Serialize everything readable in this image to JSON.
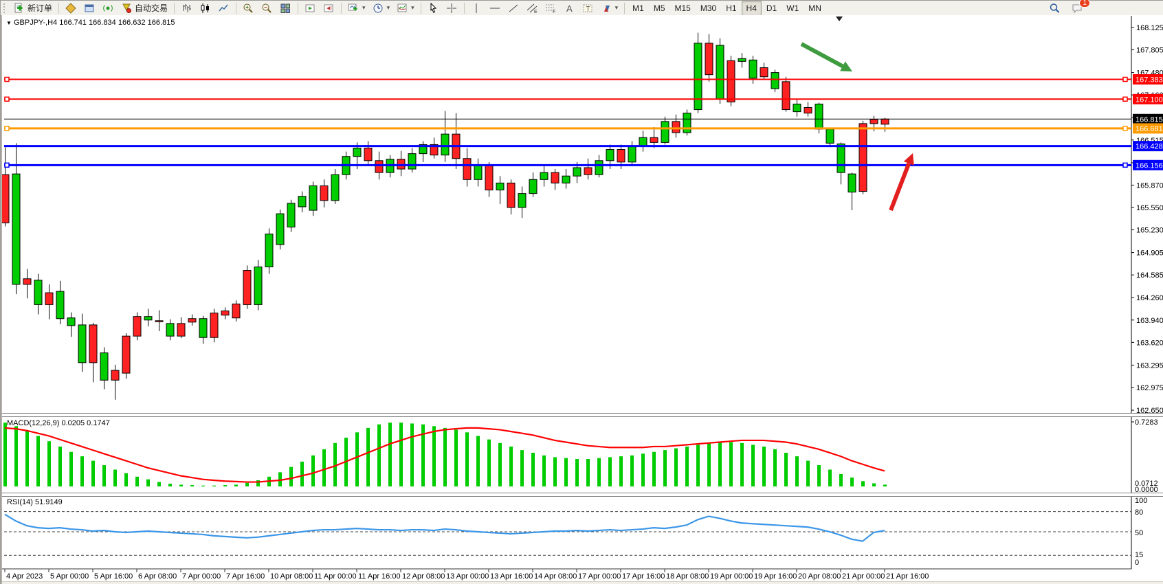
{
  "toolbar": {
    "new_order_label": "新订单",
    "auto_trading_label": "自动交易",
    "icons": {
      "new_order": "document-plus-icon",
      "symbols": "gold-diamond-icon",
      "terminal": "blue-window-icon",
      "signal": "signal-icon",
      "auto_trading": "funnel-red-dot-icon",
      "bar_chart": "bar-chart-icon",
      "candle_chart": "candlestick-icon",
      "line_chart": "line-chart-icon",
      "zoom_in": "zoom-in-icon",
      "zoom_out": "zoom-out-icon",
      "tile_windows": "tile-windows-icon",
      "auto_scroll": "auto-scroll-icon",
      "chart_shift": "chart-shift-icon",
      "new_chart": "new-chart-icon",
      "periods": "clock-icon",
      "indicators": "indicator-chart-icon",
      "cursor": "cursor-icon",
      "crosshair": "crosshair-icon",
      "vline": "vertical-line-icon",
      "hline": "horizontal-line-icon",
      "trendline": "trendline-icon",
      "channel": "equidistant-channel-icon",
      "fibonacci": "fibonacci-icon",
      "text": "text-a-icon",
      "text_label": "text-label-icon",
      "arrows": "arrow-objects-icon",
      "search": "search-icon",
      "chat": "chat-bubble-icon"
    },
    "timeframes": [
      "M1",
      "M5",
      "M15",
      "M30",
      "H1",
      "H4",
      "D1",
      "W1",
      "MN"
    ],
    "active_timeframe": "H4",
    "chat_badge": "1"
  },
  "chart": {
    "symbol": "GBPJPY-",
    "period": "H4",
    "open": "166.741",
    "high": "166.834",
    "low": "166.632",
    "close": "166.815",
    "title_line": "GBPJPY-,H4  166.741 166.834 166.632 166.815"
  },
  "price_axis": {
    "ticks": [
      "168.125",
      "167.805",
      "167.480",
      "167.160",
      "166.835",
      "166.515",
      "166.190",
      "165.870",
      "165.550",
      "165.230",
      "164.905",
      "164.585",
      "164.260",
      "163.940",
      "163.620",
      "163.295",
      "162.975",
      "162.650"
    ]
  },
  "hlines": [
    {
      "label": "167.383",
      "price": 167.383,
      "color": "#FF0000",
      "width": 2,
      "handle": true
    },
    {
      "label": "167.100",
      "price": 167.1,
      "color": "#FF0000",
      "width": 2,
      "handle": true
    },
    {
      "label": "166.681",
      "price": 166.681,
      "color": "#FF9B00",
      "width": 3,
      "handle": true
    },
    {
      "label": "166.428",
      "price": 166.428,
      "color": "#0000FF",
      "width": 3,
      "handle": false
    },
    {
      "label": "166.156",
      "price": 166.156,
      "color": "#0000FF",
      "width": 3,
      "handle": true
    }
  ],
  "current_price": {
    "label": "166.815",
    "price": 166.815,
    "color": "#000000"
  },
  "annotations": {
    "green_down_arrow": {
      "from": [
        1163,
        63
      ],
      "to": [
        1237,
        103
      ],
      "color": "#3E9B3E"
    },
    "red_up_arrow": {
      "from": [
        1293,
        305
      ],
      "to": [
        1325,
        222
      ],
      "color": "#E21F1F"
    }
  },
  "date_axis": {
    "labels": [
      "4 Apr 2023",
      "5 Apr 00:00",
      "5 Apr 16:00",
      "6 Apr 08:00",
      "7 Apr 00:00",
      "7 Apr 16:00",
      "10 Apr 08:00",
      "11 Apr 00:00",
      "11 Apr 16:00",
      "12 Apr 08:00",
      "13 Apr 00:00",
      "13 Apr 16:00",
      "14 Apr 08:00",
      "17 Apr 00:00",
      "17 Apr 16:00",
      "18 Apr 08:00",
      "19 Apr 00:00",
      "19 Apr 16:00",
      "20 Apr 08:00",
      "21 Apr 00:00",
      "21 Apr 16:00"
    ]
  },
  "indicators": {
    "macd": {
      "title": "MACD(12,26,9) 0.0205 0.1747",
      "name": "MACD",
      "params": "12,26,9",
      "main_value": "0.0205",
      "signal_value": "0.1747",
      "axis_labels": [
        "0.7283",
        "0.0712",
        "0.0000"
      ],
      "histogram_color": "#00CC00",
      "signal_color": "#FF0000"
    },
    "rsi": {
      "title": "RSI(14) 51.9149",
      "name": "RSI",
      "params": "14",
      "value": "51.9149",
      "axis_labels": [
        "100",
        "80",
        "50",
        "15",
        "0"
      ],
      "levels": [
        80,
        50,
        15
      ],
      "line_color": "#3B96E8"
    }
  },
  "chart_data": {
    "type": "candlestick",
    "title": "GBPJPY- H4",
    "ylabel": "price",
    "ylim": [
      162.65,
      168.29
    ],
    "x_axis_labeled_every": 4,
    "times": [
      "4 Apr 08:00",
      "4 Apr 12:00",
      "4 Apr 16:00",
      "4 Apr 20:00",
      "5 Apr 00:00",
      "5 Apr 04:00",
      "5 Apr 08:00",
      "5 Apr 12:00",
      "5 Apr 16:00",
      "5 Apr 20:00",
      "6 Apr 00:00",
      "6 Apr 04:00",
      "6 Apr 08:00",
      "6 Apr 12:00",
      "6 Apr 16:00",
      "6 Apr 20:00",
      "7 Apr 00:00",
      "7 Apr 04:00",
      "7 Apr 08:00",
      "7 Apr 12:00",
      "7 Apr 16:00",
      "7 Apr 20:00",
      "10 Apr 00:00",
      "10 Apr 04:00",
      "10 Apr 08:00",
      "10 Apr 12:00",
      "10 Apr 16:00",
      "10 Apr 20:00",
      "11 Apr 00:00",
      "11 Apr 04:00",
      "11 Apr 08:00",
      "11 Apr 12:00",
      "11 Apr 16:00",
      "11 Apr 20:00",
      "12 Apr 00:00",
      "12 Apr 04:00",
      "12 Apr 08:00",
      "12 Apr 12:00",
      "12 Apr 16:00",
      "12 Apr 20:00",
      "13 Apr 00:00",
      "13 Apr 04:00",
      "13 Apr 08:00",
      "13 Apr 12:00",
      "13 Apr 16:00",
      "13 Apr 20:00",
      "14 Apr 00:00",
      "14 Apr 04:00",
      "14 Apr 08:00",
      "14 Apr 12:00",
      "14 Apr 16:00",
      "14 Apr 20:00",
      "17 Apr 00:00",
      "17 Apr 04:00",
      "17 Apr 08:00",
      "17 Apr 12:00",
      "17 Apr 16:00",
      "17 Apr 20:00",
      "18 Apr 00:00",
      "18 Apr 04:00",
      "18 Apr 08:00",
      "18 Apr 12:00",
      "18 Apr 16:00",
      "18 Apr 20:00",
      "19 Apr 00:00",
      "19 Apr 04:00",
      "19 Apr 08:00",
      "19 Apr 12:00",
      "19 Apr 16:00",
      "19 Apr 20:00",
      "20 Apr 00:00",
      "20 Apr 04:00",
      "20 Apr 08:00",
      "20 Apr 12:00",
      "20 Apr 16:00",
      "20 Apr 20:00",
      "21 Apr 00:00",
      "21 Apr 04:00",
      "21 Apr 08:00",
      "21 Apr 12:00",
      "21 Apr 16:00"
    ],
    "ohlc": [
      [
        166.02,
        166.41,
        165.28,
        165.33
      ],
      [
        164.45,
        166.47,
        164.31,
        166.03
      ],
      [
        164.53,
        164.67,
        164.25,
        164.45
      ],
      [
        164.16,
        164.6,
        164.02,
        164.51
      ],
      [
        164.33,
        164.45,
        163.95,
        164.16
      ],
      [
        163.96,
        164.5,
        163.88,
        164.35
      ],
      [
        163.86,
        164.05,
        163.7,
        163.97
      ],
      [
        163.33,
        164.03,
        163.2,
        163.87
      ],
      [
        163.87,
        163.9,
        163.05,
        163.33
      ],
      [
        163.08,
        163.55,
        162.95,
        163.47
      ],
      [
        163.22,
        163.3,
        162.8,
        163.08
      ],
      [
        163.71,
        163.75,
        163.1,
        163.18
      ],
      [
        163.99,
        164.05,
        163.65,
        163.71
      ],
      [
        163.94,
        164.1,
        163.85,
        163.99
      ],
      [
        163.93,
        164.08,
        163.78,
        163.92
      ],
      [
        163.71,
        163.95,
        163.65,
        163.89
      ],
      [
        163.89,
        163.98,
        163.68,
        163.71
      ],
      [
        163.96,
        164.02,
        163.86,
        163.91
      ],
      [
        163.69,
        164.0,
        163.6,
        163.96
      ],
      [
        164.04,
        164.1,
        163.62,
        163.69
      ],
      [
        164.07,
        164.12,
        163.95,
        164.01
      ],
      [
        164.17,
        164.22,
        163.92,
        163.97
      ],
      [
        164.65,
        164.72,
        164.1,
        164.16
      ],
      [
        164.16,
        164.8,
        164.08,
        164.7
      ],
      [
        164.7,
        165.25,
        164.6,
        165.17
      ],
      [
        165.02,
        165.52,
        164.95,
        165.46
      ],
      [
        165.27,
        165.66,
        165.2,
        165.61
      ],
      [
        165.56,
        165.78,
        165.48,
        165.71
      ],
      [
        165.51,
        165.92,
        165.43,
        165.86
      ],
      [
        165.86,
        165.95,
        165.55,
        165.65
      ],
      [
        165.65,
        166.1,
        165.6,
        166.02
      ],
      [
        166.02,
        166.35,
        165.95,
        166.28
      ],
      [
        166.28,
        166.48,
        166.1,
        166.4
      ],
      [
        166.4,
        166.5,
        166.15,
        166.22
      ],
      [
        166.22,
        166.35,
        165.95,
        166.05
      ],
      [
        166.05,
        166.3,
        165.98,
        166.24
      ],
      [
        166.24,
        166.36,
        166.0,
        166.1
      ],
      [
        166.1,
        166.4,
        166.05,
        166.32
      ],
      [
        166.32,
        166.5,
        166.2,
        166.45
      ],
      [
        166.45,
        166.55,
        166.25,
        166.3
      ],
      [
        166.3,
        166.93,
        166.2,
        166.6
      ],
      [
        166.6,
        166.9,
        166.1,
        166.25
      ],
      [
        166.25,
        166.4,
        165.85,
        165.95
      ],
      [
        165.95,
        166.25,
        165.85,
        166.15
      ],
      [
        166.15,
        166.2,
        165.7,
        165.8
      ],
      [
        165.8,
        166.0,
        165.6,
        165.9
      ],
      [
        165.9,
        165.95,
        165.45,
        165.55
      ],
      [
        165.55,
        165.85,
        165.4,
        165.75
      ],
      [
        165.75,
        166.05,
        165.7,
        165.95
      ],
      [
        165.95,
        166.15,
        165.85,
        166.05
      ],
      [
        166.05,
        166.1,
        165.8,
        165.9
      ],
      [
        165.9,
        166.1,
        165.82,
        166.0
      ],
      [
        166.0,
        166.2,
        165.9,
        166.12
      ],
      [
        166.12,
        166.25,
        165.95,
        166.02
      ],
      [
        166.02,
        166.3,
        165.98,
        166.22
      ],
      [
        166.22,
        166.45,
        166.1,
        166.38
      ],
      [
        166.38,
        166.45,
        166.1,
        166.2
      ],
      [
        166.2,
        166.5,
        166.15,
        166.42
      ],
      [
        166.42,
        166.65,
        166.35,
        166.55
      ],
      [
        166.55,
        166.7,
        166.4,
        166.48
      ],
      [
        166.48,
        166.85,
        166.45,
        166.78
      ],
      [
        166.78,
        166.88,
        166.55,
        166.62
      ],
      [
        166.62,
        166.95,
        166.58,
        166.9
      ],
      [
        166.95,
        168.05,
        166.9,
        167.9
      ],
      [
        167.9,
        168.03,
        167.35,
        167.45
      ],
      [
        167.1,
        167.97,
        167.03,
        167.87
      ],
      [
        167.65,
        167.72,
        167.0,
        167.06
      ],
      [
        167.64,
        167.76,
        167.55,
        167.68
      ],
      [
        167.4,
        167.72,
        167.32,
        167.66
      ],
      [
        167.55,
        167.62,
        167.38,
        167.42
      ],
      [
        167.25,
        167.52,
        167.2,
        167.48
      ],
      [
        167.35,
        167.42,
        166.92,
        166.95
      ],
      [
        166.92,
        167.1,
        166.85,
        167.03
      ],
      [
        166.98,
        167.06,
        166.85,
        166.9
      ],
      [
        166.67,
        167.05,
        166.61,
        167.03
      ],
      [
        166.47,
        166.62,
        166.44,
        166.67
      ],
      [
        166.05,
        166.48,
        165.88,
        166.46
      ],
      [
        165.77,
        166.05,
        165.51,
        166.03
      ],
      [
        166.75,
        166.79,
        165.74,
        165.78
      ],
      [
        166.81,
        166.86,
        166.64,
        166.75
      ],
      [
        166.741,
        166.834,
        166.632,
        166.815
      ]
    ],
    "color_overrides": {
      "80": "red"
    },
    "bull_color": "#00CE00",
    "bear_color": "#FF2222",
    "macd_histogram": [
      0.72,
      0.68,
      0.63,
      0.57,
      0.51,
      0.45,
      0.39,
      0.34,
      0.29,
      0.24,
      0.19,
      0.15,
      0.11,
      0.08,
      0.05,
      0.03,
      0.02,
      0.015,
      0.01,
      0.01,
      0.015,
      0.02,
      0.04,
      0.07,
      0.11,
      0.16,
      0.22,
      0.28,
      0.35,
      0.42,
      0.49,
      0.55,
      0.61,
      0.66,
      0.7,
      0.72,
      0.72,
      0.71,
      0.7,
      0.68,
      0.66,
      0.64,
      0.61,
      0.57,
      0.53,
      0.49,
      0.45,
      0.41,
      0.38,
      0.35,
      0.33,
      0.32,
      0.31,
      0.31,
      0.32,
      0.33,
      0.34,
      0.35,
      0.37,
      0.39,
      0.41,
      0.43,
      0.45,
      0.47,
      0.49,
      0.5,
      0.5,
      0.49,
      0.47,
      0.45,
      0.42,
      0.38,
      0.34,
      0.29,
      0.24,
      0.19,
      0.14,
      0.1,
      0.06,
      0.035,
      0.0205
    ],
    "macd_signal": [
      0.66,
      0.65,
      0.63,
      0.6,
      0.57,
      0.53,
      0.49,
      0.45,
      0.41,
      0.37,
      0.33,
      0.29,
      0.25,
      0.21,
      0.18,
      0.15,
      0.12,
      0.1,
      0.08,
      0.07,
      0.06,
      0.055,
      0.05,
      0.05,
      0.06,
      0.07,
      0.09,
      0.12,
      0.15,
      0.19,
      0.23,
      0.28,
      0.33,
      0.38,
      0.43,
      0.48,
      0.52,
      0.56,
      0.59,
      0.62,
      0.64,
      0.65,
      0.66,
      0.66,
      0.65,
      0.64,
      0.62,
      0.6,
      0.58,
      0.55,
      0.52,
      0.5,
      0.48,
      0.46,
      0.45,
      0.44,
      0.44,
      0.44,
      0.44,
      0.45,
      0.45,
      0.46,
      0.47,
      0.48,
      0.49,
      0.5,
      0.51,
      0.52,
      0.52,
      0.52,
      0.51,
      0.5,
      0.48,
      0.45,
      0.42,
      0.38,
      0.34,
      0.29,
      0.25,
      0.21,
      0.1747
    ],
    "rsi_values": [
      76,
      66,
      59,
      56,
      55,
      56,
      54,
      53,
      51,
      52,
      50,
      49,
      50,
      51,
      50,
      49,
      48,
      47,
      46,
      44,
      43,
      42,
      41,
      42,
      44,
      46,
      48,
      50,
      52,
      53,
      53,
      54,
      55,
      54,
      53,
      53,
      52,
      53,
      53,
      52,
      54,
      53,
      51,
      50,
      49,
      48,
      47,
      48,
      49,
      50,
      51,
      51,
      52,
      51,
      52,
      53,
      52,
      53,
      54,
      56,
      55,
      57,
      60,
      68,
      73,
      70,
      66,
      63,
      62,
      61,
      60,
      59,
      58,
      57,
      54,
      50,
      45,
      39,
      36,
      49,
      51.9149
    ]
  }
}
